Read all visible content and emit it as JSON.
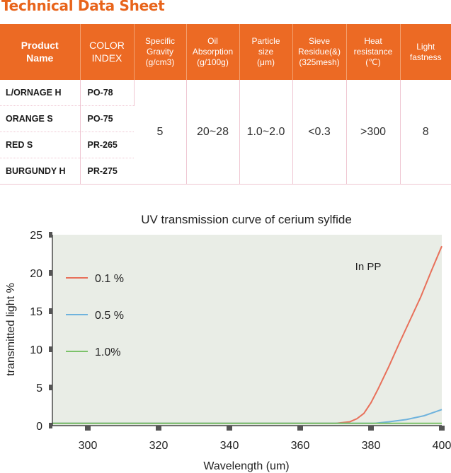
{
  "page_title": "Technical Data Sheet",
  "table": {
    "headers": {
      "product_name": [
        "Product",
        "Name"
      ],
      "color_index": [
        "COLOR",
        "INDEX"
      ],
      "specific_gravity": [
        "Specific",
        "Gravity",
        "(g/cm3)"
      ],
      "oil_absorption": [
        "Oil",
        "Absorption",
        "(g/100g)"
      ],
      "particle_size": [
        "Particle",
        "size",
        "(μm)"
      ],
      "sieve_residue": [
        "Sieve",
        "Residue(&)",
        "(325mesh)"
      ],
      "heat_resistance": [
        "Heat",
        "resistance",
        "(℃)"
      ],
      "light_fastness": [
        "Light",
        "fastness"
      ]
    },
    "rows": [
      {
        "name": "L/ORNAGE H",
        "index": "PO-78"
      },
      {
        "name": "ORANGE S",
        "index": "PO-75"
      },
      {
        "name": "RED S",
        "index": "PR-265"
      },
      {
        "name": "BURGUNDY H",
        "index": "PR-275"
      }
    ],
    "values": {
      "specific_gravity": "5",
      "oil_absorption": "20~28",
      "particle_size": "1.0~2.0",
      "sieve_residue": "<0.3",
      "heat_resistance": ">300",
      "light_fastness": "8"
    }
  },
  "chart_data": {
    "type": "line",
    "title": "UV transmission curve of cerium sylfide",
    "xlabel": "Wavelength (um)",
    "ylabel": "transmitted light  %",
    "xlim": [
      290,
      400
    ],
    "ylim": [
      0,
      25
    ],
    "x_ticks": [
      300,
      320,
      340,
      360,
      380,
      400
    ],
    "y_ticks": [
      0,
      5,
      10,
      15,
      20,
      25
    ],
    "annotation": "In PP",
    "legend_position": "left",
    "plot_background": "#e9ede6",
    "series": [
      {
        "name": "0.1 %",
        "color": "#e8705a",
        "points": [
          [
            290,
            0.3
          ],
          [
            370,
            0.3
          ],
          [
            374,
            0.5
          ],
          [
            376,
            0.9
          ],
          [
            378,
            1.6
          ],
          [
            380,
            3.0
          ],
          [
            382,
            4.8
          ],
          [
            385,
            7.7
          ],
          [
            388,
            10.8
          ],
          [
            391,
            13.8
          ],
          [
            394,
            16.8
          ],
          [
            397,
            20.2
          ],
          [
            400,
            23.5
          ]
        ]
      },
      {
        "name": "0.5 %",
        "color": "#6fb3dd",
        "points": [
          [
            290,
            0.3
          ],
          [
            381,
            0.3
          ],
          [
            385,
            0.5
          ],
          [
            390,
            0.8
          ],
          [
            395,
            1.3
          ],
          [
            400,
            2.1
          ]
        ]
      },
      {
        "name": "1.0%",
        "color": "#7cc26a",
        "points": [
          [
            290,
            0.3
          ],
          [
            400,
            0.3
          ]
        ]
      }
    ]
  }
}
